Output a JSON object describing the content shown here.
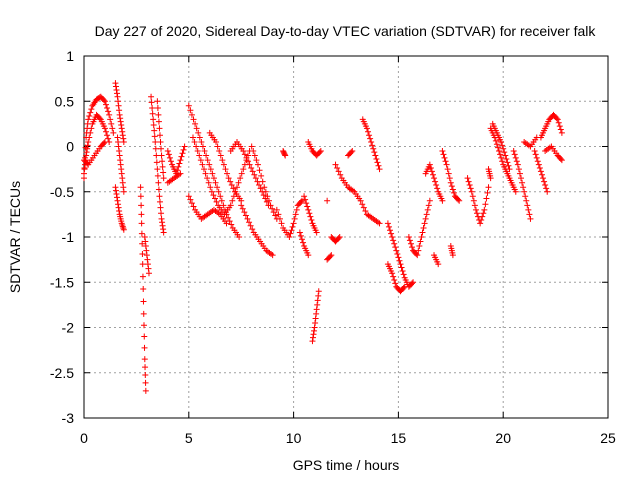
{
  "chart_data": {
    "type": "scatter",
    "title": "Day 227 of 2020, Sidereal Day-to-day VTEC variation (SDTVAR) for receiver falk",
    "xlabel": "GPS time / hours",
    "ylabel": "SDTVAR / TECUs",
    "xlim": [
      0,
      25
    ],
    "ylim": [
      -3,
      1
    ],
    "xticks": [
      0,
      5,
      10,
      15,
      20,
      25
    ],
    "yticks": [
      -3,
      -2.5,
      -2,
      -1.5,
      -1,
      -0.5,
      0,
      0.5,
      1
    ],
    "xtick_labels": [
      "0",
      "5",
      "10",
      "15",
      "20",
      "25"
    ],
    "ytick_labels": [
      "-3",
      "-2.5",
      "-2",
      "-1.5",
      "-1",
      "-0.5",
      "0",
      "0.5",
      "1"
    ],
    "grid": true,
    "marker": "+",
    "series": [
      {
        "name": "SDTVAR",
        "color": "#ff0000",
        "tracks": [
          [
            [
              0.0,
              -0.35
            ],
            [
              0.1,
              0.1
            ],
            [
              0.2,
              0.3
            ],
            [
              0.4,
              0.45
            ],
            [
              0.6,
              0.52
            ],
            [
              0.8,
              0.55
            ],
            [
              1.0,
              0.5
            ],
            [
              1.2,
              0.35
            ],
            [
              1.4,
              0.15
            ]
          ],
          [
            [
              0.0,
              -0.3
            ],
            [
              0.1,
              -0.1
            ],
            [
              0.2,
              0.05
            ],
            [
              0.4,
              0.25
            ],
            [
              0.6,
              0.35
            ],
            [
              0.8,
              0.3
            ],
            [
              1.0,
              0.2
            ],
            [
              1.2,
              0.05
            ]
          ],
          [
            [
              0.0,
              -0.15
            ],
            [
              0.2,
              -0.2
            ],
            [
              0.5,
              -0.1
            ],
            [
              0.8,
              0.0
            ],
            [
              1.0,
              0.05
            ]
          ],
          [
            [
              1.5,
              0.7
            ],
            [
              1.6,
              0.55
            ],
            [
              1.7,
              0.35
            ],
            [
              1.8,
              0.2
            ],
            [
              1.9,
              0.05
            ]
          ],
          [
            [
              1.5,
              -0.45
            ],
            [
              1.6,
              -0.6
            ],
            [
              1.7,
              -0.75
            ],
            [
              1.8,
              -0.85
            ],
            [
              1.9,
              -0.92
            ]
          ],
          [
            [
              1.6,
              0.1
            ],
            [
              1.7,
              -0.1
            ],
            [
              1.8,
              -0.3
            ],
            [
              1.9,
              -0.5
            ]
          ],
          [
            [
              2.7,
              -0.45
            ],
            [
              2.75,
              -0.85
            ],
            [
              2.8,
              -1.3
            ],
            [
              2.85,
              -1.85
            ],
            [
              2.9,
              -2.35
            ],
            [
              2.95,
              -2.7
            ]
          ],
          [
            [
              2.9,
              -1.0
            ],
            [
              3.0,
              -1.2
            ],
            [
              3.1,
              -1.4
            ]
          ],
          [
            [
              3.2,
              0.55
            ],
            [
              3.3,
              0.3
            ],
            [
              3.4,
              0.05
            ],
            [
              3.5,
              -0.25
            ],
            [
              3.6,
              -0.55
            ],
            [
              3.7,
              -0.8
            ],
            [
              3.8,
              -0.95
            ]
          ],
          [
            [
              3.5,
              0.5
            ],
            [
              3.6,
              0.2
            ],
            [
              3.7,
              -0.1
            ],
            [
              3.8,
              -0.35
            ]
          ],
          [
            [
              4.0,
              -0.05
            ],
            [
              4.2,
              -0.2
            ],
            [
              4.4,
              -0.3
            ],
            [
              4.6,
              -0.15
            ],
            [
              4.8,
              0.0
            ]
          ],
          [
            [
              4.0,
              -0.4
            ],
            [
              4.3,
              -0.35
            ],
            [
              4.6,
              -0.3
            ]
          ],
          [
            [
              5.0,
              0.45
            ],
            [
              5.3,
              0.25
            ],
            [
              5.6,
              0.05
            ],
            [
              5.9,
              -0.15
            ],
            [
              6.2,
              -0.35
            ],
            [
              6.5,
              -0.55
            ],
            [
              6.8,
              -0.75
            ],
            [
              7.1,
              -0.9
            ],
            [
              7.4,
              -1.0
            ]
          ],
          [
            [
              5.2,
              0.1
            ],
            [
              5.5,
              -0.1
            ],
            [
              5.8,
              -0.3
            ],
            [
              6.1,
              -0.5
            ],
            [
              6.4,
              -0.65
            ],
            [
              6.7,
              -0.75
            ],
            [
              7.0,
              -0.65
            ],
            [
              7.3,
              -0.45
            ],
            [
              7.6,
              -0.25
            ],
            [
              7.9,
              -0.05
            ]
          ],
          [
            [
              5.0,
              -0.55
            ],
            [
              5.3,
              -0.7
            ],
            [
              5.6,
              -0.8
            ],
            [
              5.9,
              -0.75
            ],
            [
              6.2,
              -0.7
            ],
            [
              6.5,
              -0.75
            ],
            [
              6.8,
              -0.85
            ]
          ],
          [
            [
              6.0,
              0.15
            ],
            [
              6.3,
              0.05
            ],
            [
              6.6,
              -0.15
            ],
            [
              6.9,
              -0.35
            ],
            [
              7.2,
              -0.5
            ],
            [
              7.5,
              -0.6
            ]
          ],
          [
            [
              7.0,
              -0.05
            ],
            [
              7.3,
              0.05
            ],
            [
              7.6,
              -0.05
            ],
            [
              7.9,
              -0.2
            ],
            [
              8.2,
              -0.35
            ],
            [
              8.5,
              -0.5
            ],
            [
              8.8,
              -0.65
            ]
          ],
          [
            [
              7.5,
              -0.65
            ],
            [
              7.8,
              -0.8
            ],
            [
              8.1,
              -0.95
            ],
            [
              8.4,
              -1.05
            ],
            [
              8.7,
              -1.15
            ],
            [
              9.0,
              -1.2
            ]
          ],
          [
            [
              8.0,
              0.0
            ],
            [
              8.3,
              -0.2
            ],
            [
              8.6,
              -0.45
            ],
            [
              8.9,
              -0.65
            ],
            [
              9.2,
              -0.8
            ]
          ],
          [
            [
              9.2,
              -0.7
            ],
            [
              9.5,
              -0.9
            ],
            [
              9.8,
              -1.0
            ],
            [
              10.0,
              -0.85
            ],
            [
              10.2,
              -0.65
            ],
            [
              10.4,
              -0.6
            ]
          ],
          [
            [
              9.5,
              -0.05
            ],
            [
              9.6,
              -0.1
            ]
          ],
          [
            [
              10.3,
              -0.95
            ],
            [
              10.5,
              -1.1
            ],
            [
              10.7,
              -1.2
            ]
          ],
          [
            [
              10.5,
              -0.55
            ],
            [
              10.7,
              -0.7
            ],
            [
              10.9,
              -0.85
            ],
            [
              11.1,
              -0.95
            ]
          ],
          [
            [
              10.9,
              -2.15
            ],
            [
              11.0,
              -2.0
            ],
            [
              11.1,
              -1.8
            ],
            [
              11.2,
              -1.6
            ]
          ],
          [
            [
              10.7,
              0.05
            ],
            [
              10.9,
              -0.05
            ],
            [
              11.1,
              -0.1
            ],
            [
              11.3,
              -0.05
            ]
          ],
          [
            [
              11.6,
              -0.6
            ]
          ],
          [
            [
              11.8,
              -1.0
            ],
            [
              12.0,
              -1.05
            ],
            [
              12.2,
              -1.0
            ]
          ],
          [
            [
              11.6,
              -1.25
            ],
            [
              11.8,
              -1.2
            ]
          ],
          [
            [
              12.0,
              -0.2
            ],
            [
              12.3,
              -0.35
            ],
            [
              12.6,
              -0.45
            ],
            [
              12.9,
              -0.5
            ],
            [
              13.2,
              -0.6
            ],
            [
              13.5,
              -0.75
            ],
            [
              13.8,
              -0.8
            ],
            [
              14.1,
              -0.85
            ]
          ],
          [
            [
              12.6,
              -0.1
            ],
            [
              12.8,
              -0.05
            ]
          ],
          [
            [
              13.3,
              0.3
            ],
            [
              13.5,
              0.2
            ],
            [
              13.7,
              0.05
            ],
            [
              13.9,
              -0.1
            ],
            [
              14.1,
              -0.25
            ]
          ],
          [
            [
              14.5,
              -0.85
            ],
            [
              14.7,
              -1.0
            ],
            [
              14.9,
              -1.15
            ],
            [
              15.1,
              -1.3
            ],
            [
              15.3,
              -1.45
            ],
            [
              15.5,
              -1.55
            ],
            [
              15.7,
              -1.5
            ]
          ],
          [
            [
              14.5,
              -1.3
            ],
            [
              14.7,
              -1.4
            ],
            [
              14.9,
              -1.55
            ],
            [
              15.1,
              -1.6
            ],
            [
              15.3,
              -1.55
            ]
          ],
          [
            [
              15.5,
              -1.0
            ],
            [
              15.7,
              -1.15
            ],
            [
              15.9,
              -1.2
            ],
            [
              16.1,
              -1.0
            ],
            [
              16.3,
              -0.8
            ],
            [
              16.5,
              -0.6
            ]
          ],
          [
            [
              16.3,
              -0.3
            ],
            [
              16.5,
              -0.2
            ],
            [
              16.7,
              -0.35
            ],
            [
              16.9,
              -0.5
            ],
            [
              17.1,
              -0.6
            ]
          ],
          [
            [
              16.7,
              -1.2
            ],
            [
              16.9,
              -1.3
            ]
          ],
          [
            [
              17.1,
              -0.05
            ],
            [
              17.3,
              -0.2
            ],
            [
              17.5,
              -0.4
            ],
            [
              17.7,
              -0.55
            ],
            [
              17.9,
              -0.6
            ]
          ],
          [
            [
              17.5,
              -1.1
            ],
            [
              17.6,
              -1.2
            ]
          ],
          [
            [
              18.3,
              -0.35
            ],
            [
              18.5,
              -0.5
            ],
            [
              18.7,
              -0.7
            ],
            [
              18.9,
              -0.85
            ],
            [
              19.1,
              -0.7
            ],
            [
              19.3,
              -0.45
            ]
          ],
          [
            [
              19.3,
              -0.25
            ],
            [
              19.4,
              -0.35
            ]
          ],
          [
            [
              19.4,
              0.2
            ],
            [
              19.6,
              0.1
            ],
            [
              19.8,
              -0.05
            ],
            [
              20.0,
              -0.2
            ],
            [
              20.2,
              -0.3
            ],
            [
              20.4,
              -0.4
            ],
            [
              20.6,
              -0.5
            ]
          ],
          [
            [
              19.5,
              0.25
            ],
            [
              19.7,
              0.15
            ],
            [
              19.9,
              0.05
            ],
            [
              20.1,
              -0.1
            ],
            [
              20.3,
              -0.25
            ]
          ],
          [
            [
              20.5,
              -0.05
            ],
            [
              20.7,
              -0.2
            ],
            [
              20.9,
              -0.4
            ],
            [
              21.1,
              -0.6
            ],
            [
              21.3,
              -0.8
            ]
          ],
          [
            [
              21.5,
              -0.05
            ],
            [
              21.7,
              -0.2
            ],
            [
              21.9,
              -0.35
            ],
            [
              22.1,
              -0.5
            ]
          ],
          [
            [
              21.0,
              0.05
            ],
            [
              21.3,
              0.0
            ],
            [
              21.6,
              0.1
            ]
          ],
          [
            [
              21.8,
              0.1
            ],
            [
              22.0,
              0.2
            ],
            [
              22.2,
              0.3
            ],
            [
              22.4,
              0.35
            ],
            [
              22.6,
              0.3
            ],
            [
              22.8,
              0.15
            ]
          ],
          [
            [
              22.0,
              -0.05
            ],
            [
              22.3,
              0.0
            ],
            [
              22.6,
              -0.1
            ],
            [
              22.8,
              -0.15
            ]
          ]
        ]
      }
    ]
  }
}
